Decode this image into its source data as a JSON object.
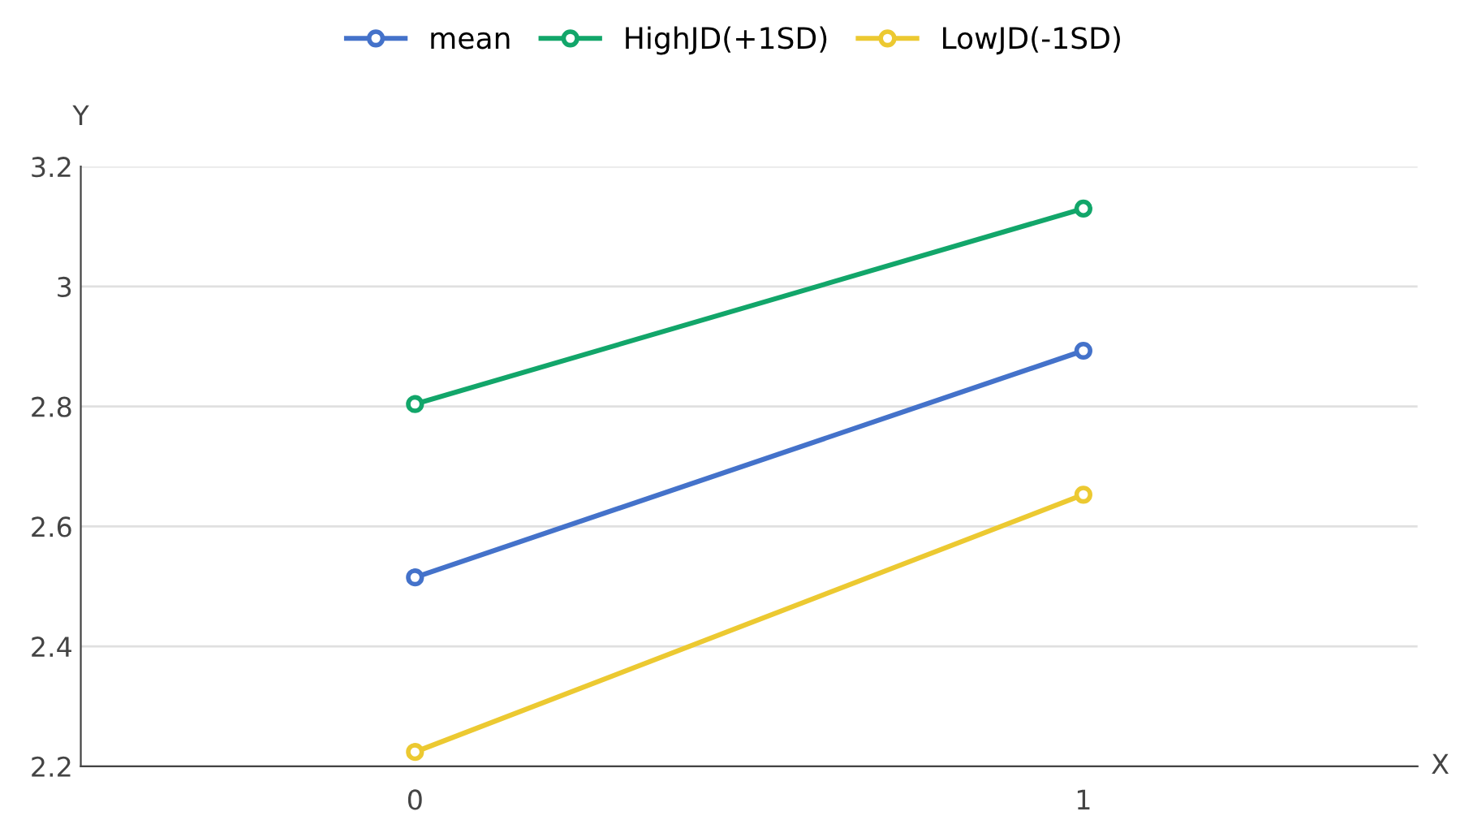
{
  "chart_data": {
    "type": "line",
    "xlabel": "X",
    "ylabel": "Y",
    "categories": [
      "0",
      "1"
    ],
    "series": [
      {
        "name": "mean",
        "color": "#4472ca",
        "values": [
          2.515,
          2.893
        ]
      },
      {
        "name": "HighJD(+1SD)",
        "color": "#12a66a",
        "values": [
          2.804,
          3.13
        ]
      },
      {
        "name": "LowJD(-1SD)",
        "color": "#ecc931",
        "values": [
          2.224,
          2.653
        ]
      }
    ],
    "ylim": [
      2.2,
      3.2
    ],
    "yticks": [
      2.2,
      2.4,
      2.6,
      2.8,
      {
        "value": 3,
        "label": "3"
      },
      3.2
    ],
    "grid": "y",
    "legend": "top",
    "marker": "circle",
    "line_style": "solid"
  }
}
